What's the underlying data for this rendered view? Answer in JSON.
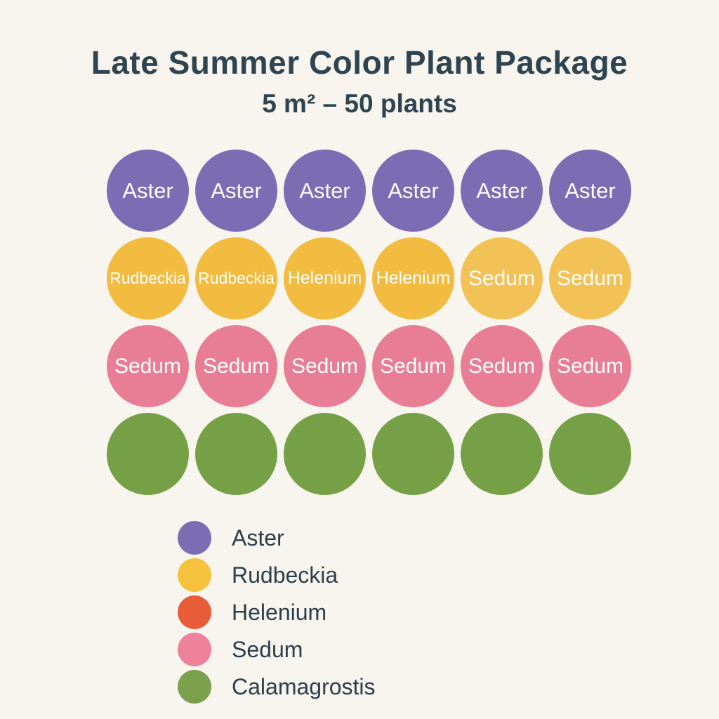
{
  "page": {
    "background_color": "#f8f5ef",
    "heading_color": "#2e4450",
    "legend_text_color": "#2c3e49"
  },
  "header": {
    "title": "Late Summer Color Plant Package",
    "subtitle": "5 m² – 50 plants"
  },
  "grid": {
    "rows": [
      {
        "cells": [
          {
            "species": "aster",
            "label": "Aster",
            "color": "#7b6cb4"
          },
          {
            "species": "aster",
            "label": "Aster",
            "color": "#7b6cb4"
          },
          {
            "species": "aster",
            "label": "Aster",
            "color": "#7b6cb4"
          },
          {
            "species": "aster",
            "label": "Aster",
            "color": "#7b6cb4"
          },
          {
            "species": "aster",
            "label": "Aster",
            "color": "#7b6cb4"
          },
          {
            "species": "aster",
            "label": "Aster",
            "color": "#7b6cb4"
          }
        ]
      },
      {
        "cells": [
          {
            "species": "rudbeckia",
            "label": "Rudbeckia",
            "color": "#f2bc41"
          },
          {
            "species": "rudbeckia",
            "label": "Rudbeckia",
            "color": "#f2bc41"
          },
          {
            "species": "helenium",
            "label": "Helenium",
            "color": "#f2bc41"
          },
          {
            "species": "helenium",
            "label": "Helenium",
            "color": "#f2bc41"
          },
          {
            "species": "sedum",
            "label": "Sedum",
            "color": "#f2bc41",
            "muted": true
          },
          {
            "species": "sedum",
            "label": "Sedum",
            "color": "#f2bc41",
            "muted": true
          }
        ]
      },
      {
        "cells": [
          {
            "species": "sedum",
            "label": "Sedum",
            "color": "#e87e95"
          },
          {
            "species": "sedum",
            "label": "Sedum",
            "color": "#e87e95"
          },
          {
            "species": "sedum",
            "label": "Sedum",
            "color": "#e87e95"
          },
          {
            "species": "sedum",
            "label": "Sedum",
            "color": "#e87e95"
          },
          {
            "species": "sedum",
            "label": "Sedum",
            "color": "#e87e95"
          },
          {
            "species": "sedum",
            "label": "Sedum",
            "color": "#e87e95"
          }
        ]
      },
      {
        "cells": [
          {
            "species": "calamagrostis",
            "label": "",
            "color": "#76a046"
          },
          {
            "species": "calamagrostis",
            "label": "",
            "color": "#76a046"
          },
          {
            "species": "calamagrostis",
            "label": "",
            "color": "#76a046"
          },
          {
            "species": "calamagrostis",
            "label": "",
            "color": "#76a046"
          },
          {
            "species": "calamagrostis",
            "label": "",
            "color": "#76a046"
          },
          {
            "species": "calamagrostis",
            "label": "",
            "color": "#76a046"
          }
        ]
      }
    ]
  },
  "legend": {
    "items": [
      {
        "label": "Aster",
        "color": "#7b6cb4"
      },
      {
        "label": "Rudbeckia",
        "color": "#f6c13c"
      },
      {
        "label": "Helenium",
        "color": "#e85c38"
      },
      {
        "label": "Sedum",
        "color": "#ee829c"
      },
      {
        "label": "Calamagrostis",
        "color": "#7ba04e"
      }
    ]
  }
}
